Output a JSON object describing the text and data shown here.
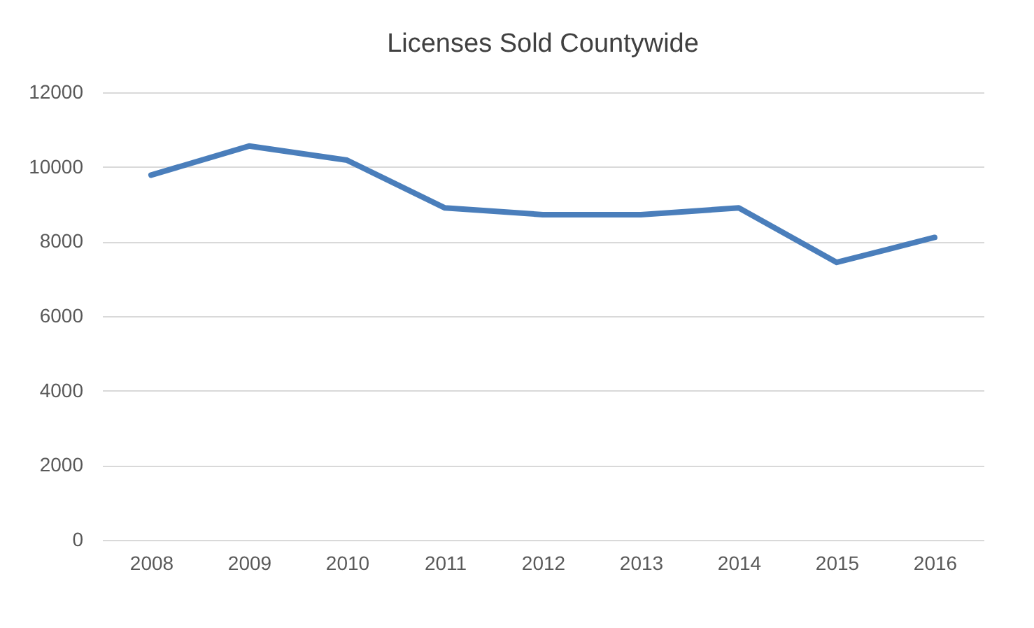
{
  "chart_data": {
    "type": "line",
    "title": "Licenses Sold Countywide",
    "categories": [
      "2008",
      "2009",
      "2010",
      "2011",
      "2012",
      "2013",
      "2014",
      "2015",
      "2016"
    ],
    "series": [
      {
        "color": "#4a7ebb",
        "values": [
          9780,
          10560,
          10180,
          8900,
          8720,
          8720,
          8900,
          7440,
          8110
        ]
      }
    ],
    "ylim": [
      0,
      12000
    ],
    "yticks": [
      0,
      2000,
      4000,
      6000,
      8000,
      10000,
      12000
    ],
    "grid": "y",
    "legend": false,
    "marker": "none",
    "line_style": "solid"
  }
}
